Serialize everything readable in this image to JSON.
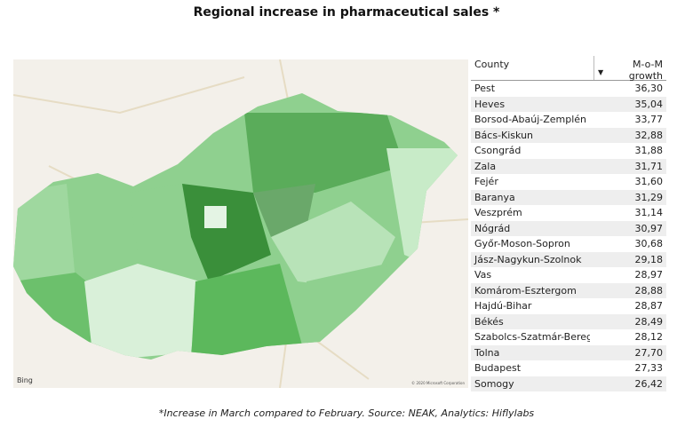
{
  "header": {
    "title": "Regional increase in pharmaceutical sales *"
  },
  "map": {
    "logo": "Bing",
    "attribution": "© 2020 Microsoft Corporation"
  },
  "table": {
    "columns": [
      "County",
      "M-o-M growth"
    ],
    "rows": [
      [
        "Pest",
        "36,30"
      ],
      [
        "Heves",
        "35,04"
      ],
      [
        "Borsod-Abaúj-Zemplén",
        "33,77"
      ],
      [
        "Bács-Kiskun",
        "32,88"
      ],
      [
        "Csongrád",
        "31,88"
      ],
      [
        "Zala",
        "31,71"
      ],
      [
        "Fejér",
        "31,60"
      ],
      [
        "Baranya",
        "31,29"
      ],
      [
        "Veszprém",
        "31,14"
      ],
      [
        "Nógrád",
        "30,97"
      ],
      [
        "Győr-Moson-Sopron",
        "30,68"
      ],
      [
        "Jász-Nagykun-Szolnok",
        "29,18"
      ],
      [
        "Vas",
        "28,97"
      ],
      [
        "Komárom-Esztergom",
        "28,88"
      ],
      [
        "Hajdú-Bihar",
        "28,87"
      ],
      [
        "Békés",
        "28,49"
      ],
      [
        "Szabolcs-Szatmár-Bereg",
        "28,12"
      ],
      [
        "Tolna",
        "27,70"
      ],
      [
        "Budapest",
        "27,33"
      ],
      [
        "Somogy",
        "26,42"
      ]
    ]
  },
  "footnote": "*Increase in March compared to February. Source: NEAK, Analytics: Hiflylabs"
}
